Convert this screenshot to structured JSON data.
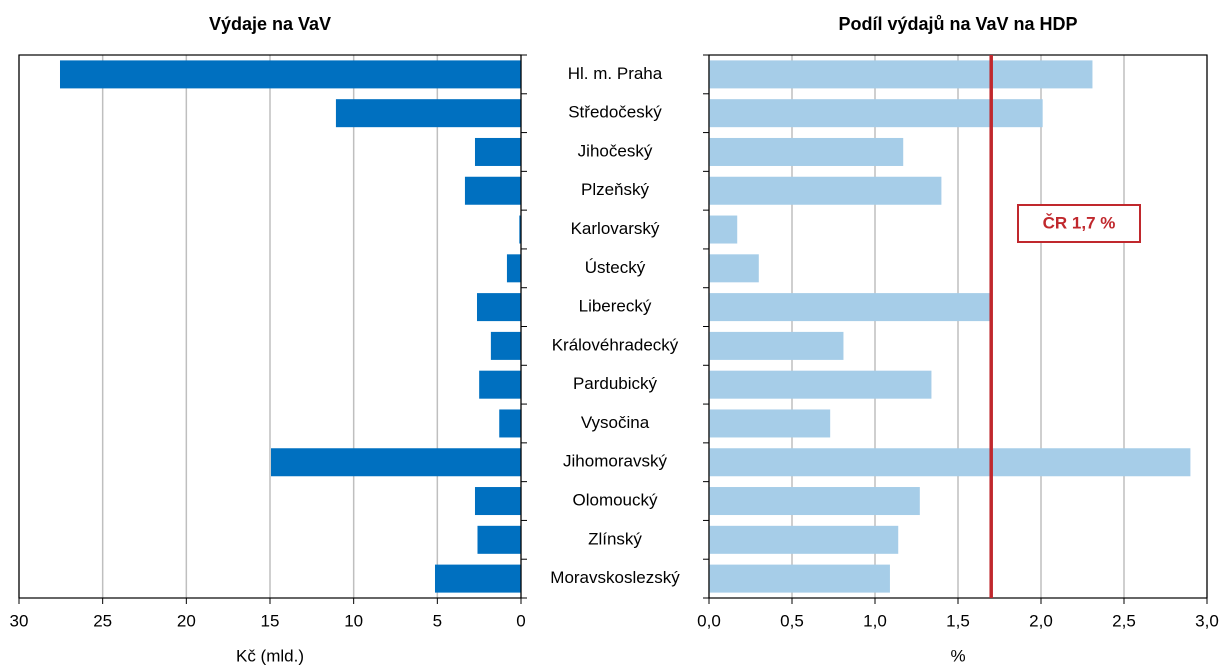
{
  "chart_data": [
    {
      "type": "bar",
      "orientation": "horizontal",
      "title": "Výdaje na VaV",
      "xlabel": "Kč (mld.)",
      "categories": [
        "Hl. m. Praha",
        "Středočeský",
        "Jihočeský",
        "Plzeňský",
        "Karlovarský",
        "Ústecký",
        "Liberecký",
        "Královéhradecký",
        "Pardubický",
        "Vysočina",
        "Jihomoravský",
        "Olomoucký",
        "Zlínský",
        "Moravskoslezský"
      ],
      "values": [
        27.55,
        11.06,
        2.75,
        3.35,
        0.1,
        0.84,
        2.63,
        1.8,
        2.5,
        1.3,
        14.94,
        2.75,
        2.6,
        5.14
      ],
      "color": "#0070c0",
      "xlim": [
        30,
        0
      ],
      "xticks": [
        30,
        25,
        20,
        15,
        10,
        5,
        0
      ],
      "grid": true
    },
    {
      "type": "bar",
      "orientation": "horizontal",
      "title": "Podíl výdajů na VaV na HDP",
      "xlabel": "%",
      "values": [
        2.31,
        2.01,
        1.17,
        1.4,
        0.17,
        0.3,
        1.69,
        0.81,
        1.34,
        0.73,
        2.9,
        1.27,
        1.14,
        1.09
      ],
      "color": "#a6cde8",
      "xlim": [
        0,
        3
      ],
      "xticks": [
        {
          "value": 0,
          "label": "0,0"
        },
        {
          "value": 0.5,
          "label": "0,5"
        },
        {
          "value": 1,
          "label": "1,0"
        },
        {
          "value": 1.5,
          "label": "1,5"
        },
        {
          "value": 2,
          "label": "2,0"
        },
        {
          "value": 2.5,
          "label": "2,5"
        },
        {
          "value": 3,
          "label": "3,0"
        }
      ],
      "grid": true,
      "reference_line": {
        "value": 1.7,
        "label": "ČR 1,7 %",
        "color": "#c0282d"
      }
    }
  ]
}
